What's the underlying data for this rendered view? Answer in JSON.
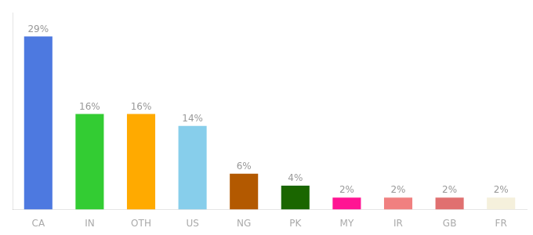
{
  "chart_data": {
    "type": "bar",
    "categories": [
      "CA",
      "IN",
      "OTH",
      "US",
      "NG",
      "PK",
      "MY",
      "IR",
      "GB",
      "FR"
    ],
    "values": [
      29,
      16,
      16,
      14,
      6,
      4,
      2,
      2,
      2,
      2
    ],
    "value_labels": [
      "29%",
      "16%",
      "16%",
      "14%",
      "6%",
      "4%",
      "2%",
      "2%",
      "2%",
      "2%"
    ],
    "colors": [
      "#4d79e0",
      "#33cc33",
      "#ffaa00",
      "#87ceeb",
      "#b35900",
      "#1a6600",
      "#ff1493",
      "#f08080",
      "#e07070",
      "#f5f0dc"
    ],
    "ylim": [
      0,
      33
    ],
    "grid": false,
    "data_labels": true,
    "tick_labels": "x"
  }
}
